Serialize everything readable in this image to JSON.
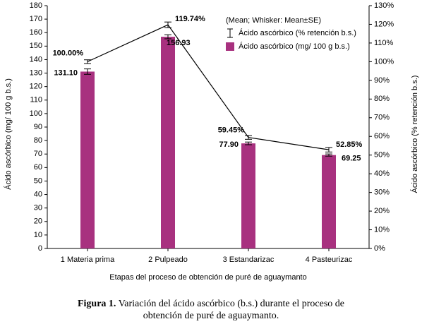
{
  "chart_data": {
    "type": "bar",
    "x_label": "Etapas del proceso de obtención de puré de aguaymanto",
    "y_label": "Ácido ascórbico (mg/ 100 g b.s.)",
    "y2_label": "Ácido ascórbico (% retención b.s.)",
    "legend_note": "(Mean; Whisker: Mean±SE)",
    "legend_position": "top-right",
    "categories": [
      "1 Materia prima",
      "2 Pulpeado",
      "3 Estandarizac",
      "4 Pasteurizac"
    ],
    "series": [
      {
        "name": "Ácido ascórbico (% retención b.s.)",
        "type": "line",
        "axis": "y2",
        "color": "#000000",
        "values": [
          100.0,
          119.74,
          59.45,
          52.85
        ],
        "errors": [
          1,
          1.5,
          1,
          1.2
        ],
        "value_labels": [
          "100.00%",
          "119.74%",
          "59.45%",
          "52.85%"
        ]
      },
      {
        "name": "Ácido ascórbico (mg/ 100 g b.s.)",
        "type": "bar",
        "color": "#a8317f",
        "values": [
          131.1,
          156.93,
          77.9,
          69.25
        ],
        "errors": [
          2,
          1.5,
          1,
          0.8
        ],
        "value_labels": [
          "131.10",
          "156.93",
          "77.90",
          "69.25"
        ]
      }
    ],
    "ylim": [
      0,
      180
    ],
    "yticks": [
      0,
      10,
      20,
      30,
      40,
      50,
      60,
      70,
      80,
      90,
      100,
      110,
      120,
      130,
      140,
      150,
      160,
      170,
      180
    ],
    "y2lim": [
      0,
      130
    ],
    "y2ticks": [
      {
        "value": 0,
        "label": "0%"
      },
      {
        "value": 10,
        "label": "10%"
      },
      {
        "value": 20,
        "label": "20%"
      },
      {
        "value": 30,
        "label": "30%"
      },
      {
        "value": 40,
        "label": "40%"
      },
      {
        "value": 50,
        "label": "50%"
      },
      {
        "value": 60,
        "label": "60%"
      },
      {
        "value": 70,
        "label": "70%"
      },
      {
        "value": 80,
        "label": "80%"
      },
      {
        "value": 90,
        "label": "90%"
      },
      {
        "value": 100,
        "label": "100%"
      },
      {
        "value": 110,
        "label": "110%"
      },
      {
        "value": 120,
        "label": "120%"
      },
      {
        "value": 130,
        "label": "130%"
      }
    ],
    "caption_label": "Figura 1.",
    "caption_lines": [
      "Variación del ácido ascórbico (b.s.) durante el proceso de",
      "obtención de puré de aguaymanto."
    ]
  }
}
